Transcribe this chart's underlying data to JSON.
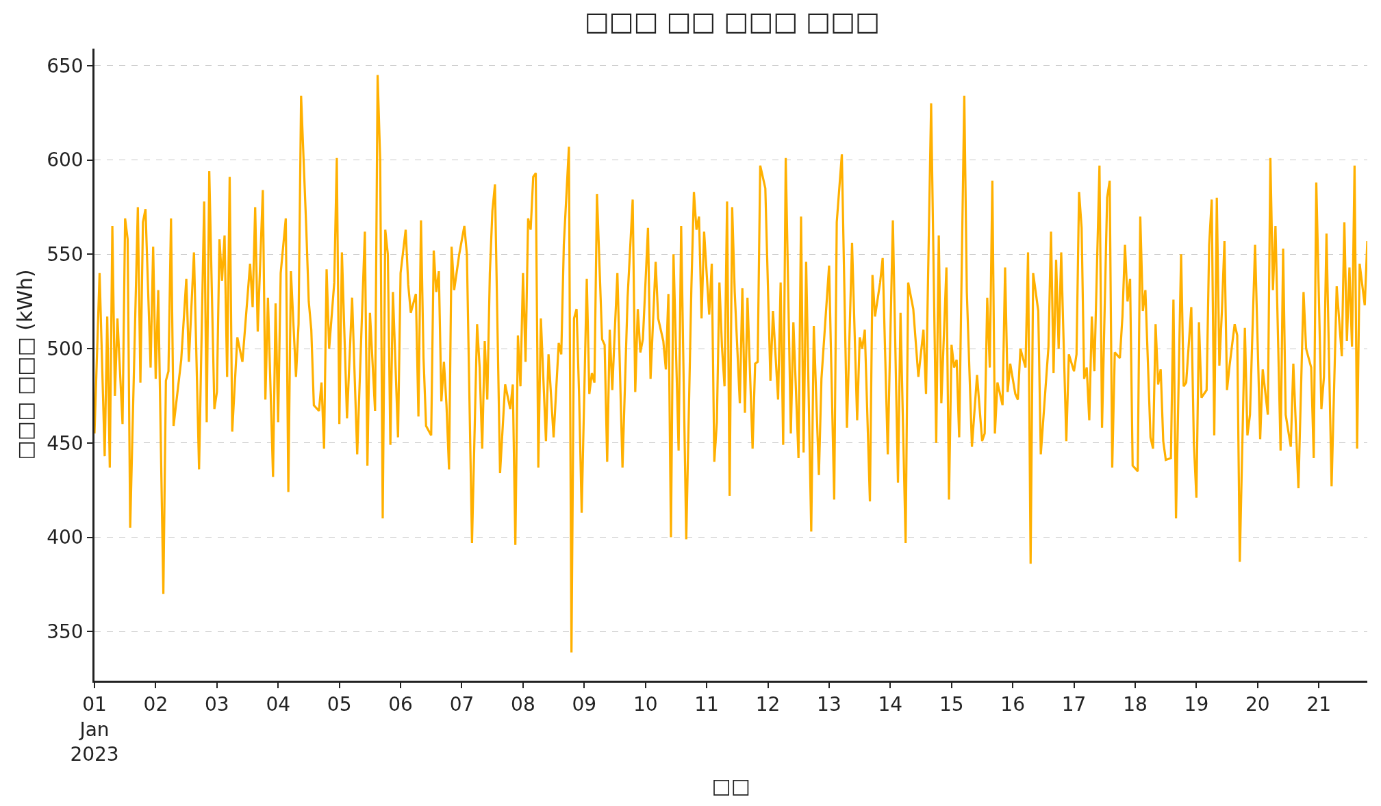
{
  "chart_data": {
    "type": "line",
    "title": "□□□ □□ □□□ □□□",
    "xlabel": "□□",
    "ylabel": "□□□ □□□ (kWh)",
    "x": [
      "2023-01-01T00:00",
      "2023-01-01T02:00",
      "2023-01-01T04:00",
      "2023-01-01T05:00",
      "2023-01-01T06:00",
      "2023-01-01T07:00",
      "2023-01-01T08:00",
      "2023-01-01T09:00",
      "2023-01-01T11:00",
      "2023-01-01T12:00",
      "2023-01-01T13:00",
      "2023-01-01T14:00",
      "2023-01-01T17:00",
      "2023-01-01T18:00",
      "2023-01-01T19:00",
      "2023-01-01T20:00",
      "2023-01-01T22:00",
      "2023-01-01T23:00",
      "2023-01-02T00:00",
      "2023-01-02T01:00",
      "2023-01-02T03:00",
      "2023-01-02T04:00",
      "2023-01-02T05:00",
      "2023-01-02T06:00",
      "2023-01-02T07:00",
      "2023-01-02T10:00",
      "2023-01-02T12:00",
      "2023-01-02T13:00",
      "2023-01-02T15:00",
      "2023-01-02T17:00",
      "2023-01-02T19:00",
      "2023-01-02T20:00",
      "2023-01-02T21:00",
      "2023-01-02T23:00",
      "2023-01-03T00:00",
      "2023-01-03T01:00",
      "2023-01-03T02:00",
      "2023-01-03T03:00",
      "2023-01-03T04:00",
      "2023-01-03T05:00",
      "2023-01-03T06:00",
      "2023-01-03T08:00",
      "2023-01-03T10:00",
      "2023-01-03T13:00",
      "2023-01-03T14:00",
      "2023-01-03T15:00",
      "2023-01-03T16:00",
      "2023-01-03T18:00",
      "2023-01-03T19:00",
      "2023-01-03T20:00",
      "2023-01-03T22:00",
      "2023-01-03T23:00",
      "2023-01-04T00:00",
      "2023-01-04T01:00",
      "2023-01-04T03:00",
      "2023-01-04T04:00",
      "2023-01-04T05:00",
      "2023-01-04T07:00",
      "2023-01-04T08:00",
      "2023-01-04T09:00",
      "2023-01-04T11:00",
      "2023-01-04T12:00",
      "2023-01-04T13:00",
      "2023-01-04T14:00",
      "2023-01-04T16:00",
      "2023-01-04T17:00",
      "2023-01-04T18:00",
      "2023-01-04T19:00",
      "2023-01-04T20:00",
      "2023-01-04T22:00",
      "2023-01-04T23:00",
      "2023-01-05T00:00",
      "2023-01-05T01:00",
      "2023-01-05T03:00",
      "2023-01-05T05:00",
      "2023-01-05T07:00",
      "2023-01-05T10:00",
      "2023-01-05T11:00",
      "2023-01-05T12:00",
      "2023-01-05T14:00",
      "2023-01-05T15:00",
      "2023-01-05T16:00",
      "2023-01-05T17:00",
      "2023-01-05T18:00",
      "2023-01-05T19:00",
      "2023-01-05T20:00",
      "2023-01-05T21:00",
      "2023-01-05T23:00",
      "2023-01-06T00:00",
      "2023-01-06T02:00",
      "2023-01-06T03:00",
      "2023-01-06T04:00",
      "2023-01-06T06:00",
      "2023-01-06T07:00",
      "2023-01-06T08:00",
      "2023-01-06T09:00",
      "2023-01-06T10:00",
      "2023-01-06T12:00",
      "2023-01-06T13:00",
      "2023-01-06T14:00",
      "2023-01-06T15:00",
      "2023-01-06T16:00",
      "2023-01-06T17:00",
      "2023-01-06T18:00",
      "2023-01-06T19:00",
      "2023-01-06T20:00",
      "2023-01-06T21:00",
      "2023-01-06T23:00",
      "2023-01-07T01:00",
      "2023-01-07T02:00",
      "2023-01-07T04:00",
      "2023-01-07T06:00",
      "2023-01-07T07:00",
      "2023-01-07T08:00",
      "2023-01-07T09:00",
      "2023-01-07T10:00",
      "2023-01-07T11:00",
      "2023-01-07T12:00",
      "2023-01-07T13:00",
      "2023-01-07T15:00",
      "2023-01-07T17:00",
      "2023-01-07T19:00",
      "2023-01-07T20:00",
      "2023-01-07T21:00",
      "2023-01-07T22:00",
      "2023-01-07T23:00",
      "2023-01-08T00:00",
      "2023-01-08T01:00",
      "2023-01-08T02:00",
      "2023-01-08T03:00",
      "2023-01-08T04:00",
      "2023-01-08T05:00",
      "2023-01-08T06:00",
      "2023-01-08T07:00",
      "2023-01-08T09:00",
      "2023-01-08T10:00",
      "2023-01-08T12:00",
      "2023-01-08T14:00",
      "2023-01-08T15:00",
      "2023-01-08T16:00",
      "2023-01-08T18:00",
      "2023-01-08T19:00",
      "2023-01-08T20:00",
      "2023-01-08T21:00",
      "2023-01-08T22:00",
      "2023-01-08T23:00",
      "2023-01-09T01:00",
      "2023-01-09T02:00",
      "2023-01-09T03:00",
      "2023-01-09T04:00",
      "2023-01-09T05:00",
      "2023-01-09T07:00",
      "2023-01-09T08:00",
      "2023-01-09T09:00",
      "2023-01-09T10:00",
      "2023-01-09T11:00",
      "2023-01-09T12:00",
      "2023-01-09T13:00",
      "2023-01-09T15:00",
      "2023-01-09T17:00",
      "2023-01-09T19:00",
      "2023-01-09T20:00",
      "2023-01-09T21:00",
      "2023-01-09T22:00",
      "2023-01-09T23:00",
      "2023-01-10T01:00",
      "2023-01-10T02:00",
      "2023-01-10T04:00",
      "2023-01-10T05:00",
      "2023-01-10T07:00",
      "2023-01-10T08:00",
      "2023-01-10T09:00",
      "2023-01-10T10:00",
      "2023-01-10T11:00",
      "2023-01-10T13:00",
      "2023-01-10T14:00",
      "2023-01-10T16:00",
      "2023-01-10T18:00",
      "2023-01-10T19:00",
      "2023-01-10T20:00",
      "2023-01-10T21:00",
      "2023-01-10T22:00",
      "2023-01-10T23:00",
      "2023-01-11T01:00",
      "2023-01-11T02:00",
      "2023-01-11T03:00",
      "2023-01-11T04:00",
      "2023-01-11T05:00",
      "2023-01-11T06:00",
      "2023-01-11T07:00",
      "2023-01-11T08:00",
      "2023-01-11T09:00",
      "2023-01-11T10:00",
      "2023-01-11T11:00",
      "2023-01-11T13:00",
      "2023-01-11T14:00",
      "2023-01-11T15:00",
      "2023-01-11T16:00",
      "2023-01-11T18:00",
      "2023-01-11T19:00",
      "2023-01-11T20:00",
      "2023-01-11T21:00",
      "2023-01-11T23:00",
      "2023-01-12T01:00",
      "2023-01-12T02:00",
      "2023-01-12T04:00",
      "2023-01-12T05:00",
      "2023-01-12T06:00",
      "2023-01-12T07:00",
      "2023-01-12T09:00",
      "2023-01-12T10:00",
      "2023-01-12T12:00",
      "2023-01-12T13:00",
      "2023-01-12T14:00",
      "2023-01-12T15:00",
      "2023-01-12T17:00",
      "2023-01-12T18:00",
      "2023-01-12T20:00",
      "2023-01-12T21:00",
      "2023-01-13T00:00",
      "2023-01-13T02:00",
      "2023-01-13T03:00",
      "2023-01-13T05:00",
      "2023-01-13T07:00",
      "2023-01-13T09:00",
      "2023-01-13T11:00",
      "2023-01-13T12:00",
      "2023-01-13T13:00",
      "2023-01-13T14:00",
      "2023-01-13T16:00",
      "2023-01-13T17:00",
      "2023-01-13T18:00",
      "2023-01-13T20:00",
      "2023-01-13T21:00",
      "2023-01-13T23:00",
      "2023-01-14T01:00",
      "2023-01-14T03:00",
      "2023-01-14T04:00",
      "2023-01-14T06:00",
      "2023-01-14T07:00",
      "2023-01-14T09:00",
      "2023-01-14T11:00",
      "2023-01-14T13:00",
      "2023-01-14T14:00",
      "2023-01-14T16:00",
      "2023-01-14T18:00",
      "2023-01-14T19:00",
      "2023-01-14T20:00",
      "2023-01-14T22:00",
      "2023-01-14T23:00",
      "2023-01-15T00:00",
      "2023-01-15T01:00",
      "2023-01-15T02:00",
      "2023-01-15T03:00",
      "2023-01-15T05:00",
      "2023-01-15T06:00",
      "2023-01-15T08:00",
      "2023-01-15T10:00",
      "2023-01-15T12:00",
      "2023-01-15T13:00",
      "2023-01-15T14:00",
      "2023-01-15T15:00",
      "2023-01-15T16:00",
      "2023-01-15T17:00",
      "2023-01-15T18:00",
      "2023-01-15T20:00",
      "2023-01-15T21:00",
      "2023-01-15T22:00",
      "2023-01-15T23:00",
      "2023-01-16T01:00",
      "2023-01-16T02:00",
      "2023-01-16T03:00",
      "2023-01-16T05:00",
      "2023-01-16T06:00",
      "2023-01-16T07:00",
      "2023-01-16T08:00",
      "2023-01-16T10:00",
      "2023-01-16T11:00",
      "2023-01-16T14:00",
      "2023-01-16T15:00",
      "2023-01-16T16:00",
      "2023-01-16T17:00",
      "2023-01-16T18:00",
      "2023-01-16T19:00",
      "2023-01-16T21:00",
      "2023-01-16T22:00",
      "2023-01-17T00:00",
      "2023-01-17T01:00",
      "2023-01-17T02:00",
      "2023-01-17T03:00",
      "2023-01-17T04:00",
      "2023-01-17T05:00",
      "2023-01-17T06:00",
      "2023-01-17T07:00",
      "2023-01-17T08:00",
      "2023-01-17T10:00",
      "2023-01-17T11:00",
      "2023-01-17T13:00",
      "2023-01-17T14:00",
      "2023-01-17T15:00",
      "2023-01-17T16:00",
      "2023-01-17T18:00",
      "2023-01-17T19:00",
      "2023-01-17T20:00",
      "2023-01-17T21:00",
      "2023-01-17T22:00",
      "2023-01-17T23:00",
      "2023-01-18T01:00",
      "2023-01-18T02:00",
      "2023-01-18T03:00",
      "2023-01-18T04:00",
      "2023-01-18T06:00",
      "2023-01-18T07:00",
      "2023-01-18T08:00",
      "2023-01-18T09:00",
      "2023-01-18T10:00",
      "2023-01-18T11:00",
      "2023-01-18T12:00",
      "2023-01-18T14:00",
      "2023-01-18T15:00",
      "2023-01-18T16:00",
      "2023-01-18T18:00",
      "2023-01-18T19:00",
      "2023-01-18T20:00",
      "2023-01-18T22:00",
      "2023-01-18T23:00",
      "2023-01-19T00:00",
      "2023-01-19T01:00",
      "2023-01-19T02:00",
      "2023-01-19T04:00",
      "2023-01-19T05:00",
      "2023-01-19T06:00",
      "2023-01-19T07:00",
      "2023-01-19T08:00",
      "2023-01-19T09:00",
      "2023-01-19T10:00",
      "2023-01-19T11:00",
      "2023-01-19T12:00",
      "2023-01-19T13:00",
      "2023-01-19T15:00",
      "2023-01-19T16:00",
      "2023-01-19T17:00",
      "2023-01-19T19:00",
      "2023-01-19T20:00",
      "2023-01-19T21:00",
      "2023-01-19T23:00",
      "2023-01-20T01:00",
      "2023-01-20T02:00",
      "2023-01-20T04:00",
      "2023-01-20T05:00",
      "2023-01-20T06:00",
      "2023-01-20T07:00",
      "2023-01-20T09:00",
      "2023-01-20T10:00",
      "2023-01-20T11:00",
      "2023-01-20T13:00",
      "2023-01-20T14:00",
      "2023-01-20T16:00",
      "2023-01-20T18:00",
      "2023-01-20T19:00",
      "2023-01-20T21:00",
      "2023-01-20T22:00",
      "2023-01-20T23:00",
      "2023-01-21T01:00",
      "2023-01-21T02:00",
      "2023-01-21T03:00",
      "2023-01-21T05:00",
      "2023-01-21T07:00",
      "2023-01-21T09:00",
      "2023-01-21T10:00",
      "2023-01-21T11:00",
      "2023-01-21T12:00",
      "2023-01-21T13:00",
      "2023-01-21T14:00",
      "2023-01-21T15:00",
      "2023-01-21T16:00",
      "2023-01-21T18:00",
      "2023-01-21T19:00"
    ],
    "series": [
      {
        "color": "#ffb000",
        "values": [
          455,
          540,
          443,
          517,
          437,
          565,
          475,
          516,
          460,
          569,
          558,
          405,
          575,
          482,
          567,
          574,
          490,
          554,
          484,
          531,
          370,
          483,
          488,
          569,
          459,
          494,
          537,
          493,
          551,
          436,
          578,
          461,
          594,
          468,
          477,
          558,
          536,
          560,
          485,
          591,
          456,
          506,
          493,
          545,
          522,
          575,
          509,
          584,
          473,
          527,
          432,
          524,
          461,
          540,
          569,
          424,
          541,
          485,
          513,
          634,
          565,
          525,
          510,
          470,
          467,
          482,
          447,
          542,
          500,
          535,
          601,
          460,
          551,
          463,
          527,
          444,
          562,
          438,
          519,
          467,
          645,
          600,
          410,
          563,
          550,
          449,
          530,
          453,
          540,
          563,
          534,
          519,
          529,
          464,
          568,
          495,
          459,
          454,
          552,
          530,
          541,
          472,
          493,
          470,
          436,
          554,
          531,
          550,
          565,
          550,
          397,
          513,
          490,
          447,
          504,
          473,
          540,
          573,
          587,
          434,
          481,
          468,
          481,
          396,
          507,
          480,
          540,
          493,
          569,
          563,
          591,
          593,
          437,
          516,
          451,
          497,
          453,
          503,
          497,
          555,
          607,
          339,
          516,
          521,
          475,
          413,
          537,
          476,
          487,
          482,
          582,
          505,
          502,
          440,
          510,
          478,
          510,
          540,
          437,
          527,
          579,
          477,
          521,
          498,
          505,
          564,
          484,
          546,
          516,
          504,
          489,
          529,
          400,
          550,
          446,
          565,
          399,
          532,
          583,
          563,
          570,
          516,
          562,
          518,
          545,
          440,
          461,
          535,
          501,
          480,
          578,
          422,
          575,
          530,
          471,
          532,
          466,
          527,
          447,
          492,
          493,
          597,
          585,
          483,
          520,
          473,
          535,
          449,
          601,
          455,
          514,
          442,
          570,
          445,
          546,
          403,
          512,
          433,
          484,
          544,
          420,
          567,
          603,
          458,
          556,
          462,
          506,
          500,
          510,
          419,
          539,
          517,
          535,
          548,
          444,
          568,
          429,
          519,
          397,
          535,
          521,
          485,
          510,
          476,
          630,
          450,
          560,
          471,
          543,
          420,
          502,
          490,
          494,
          453,
          634,
          530,
          448,
          486,
          451,
          455,
          527,
          490,
          589,
          455,
          482,
          470,
          543,
          477,
          492,
          476,
          473,
          500,
          490,
          551,
          386,
          540,
          520,
          444,
          501,
          562,
          487,
          547,
          500,
          551,
          451,
          497,
          488,
          497,
          583,
          564,
          484,
          490,
          462,
          517,
          488,
          597,
          458,
          580,
          589,
          437,
          498,
          495,
          517,
          555,
          525,
          537,
          438,
          435,
          570,
          520,
          531,
          453,
          447,
          513,
          481,
          489,
          451,
          441,
          442,
          526,
          410,
          550,
          480,
          482,
          522,
          450,
          421,
          514,
          474,
          478,
          555,
          579,
          454,
          580,
          491,
          520,
          557,
          478,
          491,
          513,
          507,
          387,
          511,
          454,
          465,
          555,
          452,
          489,
          465,
          601,
          531,
          565,
          446,
          553,
          465,
          448,
          492,
          426,
          530,
          500,
          490,
          442,
          588,
          468,
          485,
          561,
          427,
          533,
          496,
          567,
          504,
          543,
          501,
          597,
          447,
          545,
          523,
          557
        ]
      }
    ],
    "xlim": [
      "2023-01-01T00:00",
      "2023-01-21T19:00"
    ],
    "xticks": [
      {
        "value": "2023-01-01",
        "label": "01\nJan\n2023"
      },
      {
        "value": "2023-01-02",
        "label": "02"
      },
      {
        "value": "2023-01-03",
        "label": "03"
      },
      {
        "value": "2023-01-04",
        "label": "04"
      },
      {
        "value": "2023-01-05",
        "label": "05"
      },
      {
        "value": "2023-01-06",
        "label": "06"
      },
      {
        "value": "2023-01-07",
        "label": "07"
      },
      {
        "value": "2023-01-08",
        "label": "08"
      },
      {
        "value": "2023-01-09",
        "label": "09"
      },
      {
        "value": "2023-01-10",
        "label": "10"
      },
      {
        "value": "2023-01-11",
        "label": "11"
      },
      {
        "value": "2023-01-12",
        "label": "12"
      },
      {
        "value": "2023-01-13",
        "label": "13"
      },
      {
        "value": "2023-01-14",
        "label": "14"
      },
      {
        "value": "2023-01-15",
        "label": "15"
      },
      {
        "value": "2023-01-16",
        "label": "16"
      },
      {
        "value": "2023-01-17",
        "label": "17"
      },
      {
        "value": "2023-01-18",
        "label": "18"
      },
      {
        "value": "2023-01-19",
        "label": "19"
      },
      {
        "value": "2023-01-20",
        "label": "20"
      },
      {
        "value": "2023-01-21",
        "label": "21"
      }
    ],
    "ylim": [
      324,
      659
    ],
    "yticks": [
      350,
      400,
      450,
      500,
      550,
      600,
      650
    ],
    "grid": "y",
    "marker": "none",
    "line_style": "solid"
  }
}
